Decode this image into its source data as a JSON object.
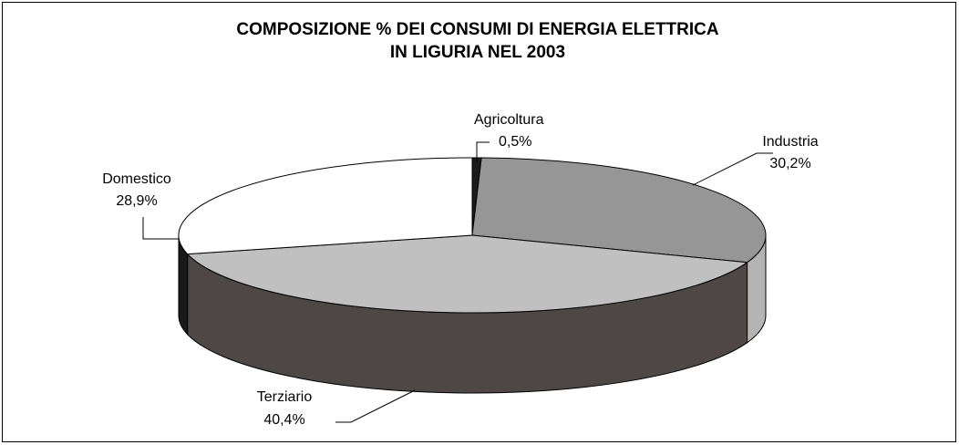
{
  "chart_data": {
    "type": "pie3d",
    "title": [
      "COMPOSIZIONE % DEI CONSUMI DI ENERGIA ELETTRICA",
      "IN LIGURIA NEL 2003"
    ],
    "categories": [
      "Agricoltura",
      "Industria",
      "Terziario",
      "Domestico"
    ],
    "values": [
      0.5,
      30.2,
      40.4,
      28.9
    ],
    "value_labels": [
      "0,5%",
      "30,2%",
      "40,4%",
      "28,9%"
    ],
    "colors": [
      "#1a1a1a",
      "#969696",
      "#c0c0c0",
      "#ffffff"
    ],
    "side_colors": [
      "#1a1a1a",
      "#b4b4b4",
      "#4d4845",
      "#1a1a1a"
    ]
  }
}
